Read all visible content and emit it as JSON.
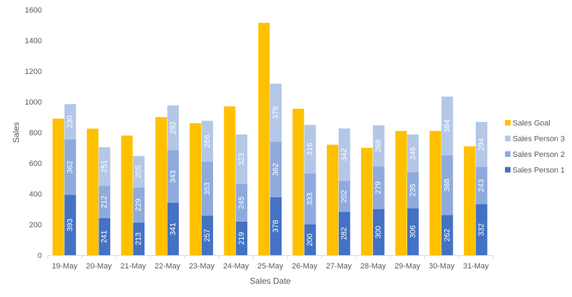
{
  "chart_data": {
    "type": "bar",
    "stacked_series": [
      "Sales Person 1",
      "Sales Person 2",
      "Sales Person 3"
    ],
    "categories": [
      "19-May",
      "20-May",
      "21-May",
      "22-May",
      "23-May",
      "24-May",
      "25-May",
      "26-May",
      "27-May",
      "28-May",
      "29-May",
      "30-May",
      "31-May"
    ],
    "series": [
      {
        "name": "Sales Goal",
        "color": "#FFC000",
        "values": [
          890,
          825,
          780,
          900,
          860,
          970,
          1515,
          955,
          720,
          700,
          810,
          810,
          710
        ]
      },
      {
        "name": "Sales Person 1",
        "color": "#4472C4",
        "values": [
          393,
          241,
          213,
          341,
          257,
          219,
          378,
          200,
          282,
          300,
          306,
          262,
          332
        ]
      },
      {
        "name": "Sales Person 2",
        "color": "#8FAADC",
        "values": [
          362,
          212,
          229,
          343,
          353,
          245,
          362,
          333,
          202,
          279,
          235,
          388,
          243
        ]
      },
      {
        "name": "Sales Person 3",
        "color": "#B4C7E7",
        "values": [
          230,
          251,
          205,
          292,
          266,
          323,
          378,
          316,
          342,
          268,
          246,
          384,
          294
        ]
      }
    ],
    "xlabel": "Sales Date",
    "ylabel": "Sales",
    "ylim": [
      0,
      1600
    ],
    "yticks": [
      0,
      200,
      400,
      600,
      800,
      1000,
      1200,
      1400,
      1600
    ],
    "legend": {
      "position": "right",
      "order": [
        "Sales Goal",
        "Sales Person 3",
        "Sales Person 2",
        "Sales Person 1"
      ]
    },
    "grid": false
  }
}
